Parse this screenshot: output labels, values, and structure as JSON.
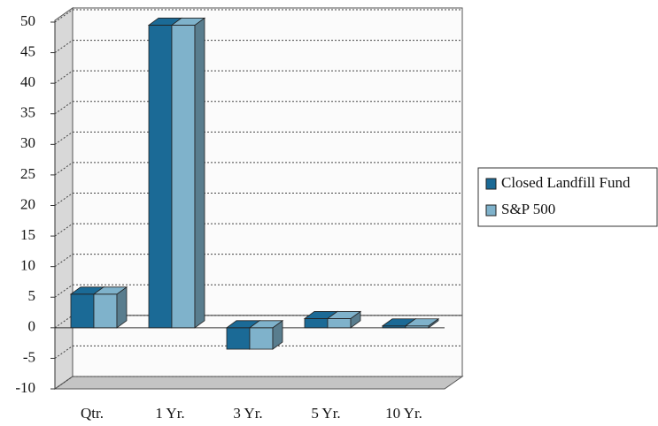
{
  "chart_data": {
    "type": "bar3d",
    "categories": [
      "Qtr.",
      "1 Yr.",
      "3 Yr.",
      "5 Yr.",
      "10 Yr."
    ],
    "series": [
      {
        "name": "Closed Landfill Fund",
        "color": "#1b6a96",
        "values": [
          5.5,
          49.5,
          -3.5,
          1.5,
          0.3
        ]
      },
      {
        "name": "S&P 500",
        "color": "#7fb2cb",
        "values": [
          5.5,
          49.5,
          -3.5,
          1.5,
          0.3
        ]
      }
    ],
    "ylim": [
      -10,
      50
    ],
    "yticks": [
      -10,
      -5,
      0,
      5,
      10,
      15,
      20,
      25,
      30,
      35,
      40,
      45,
      50
    ],
    "grid": true,
    "legend": "right"
  }
}
